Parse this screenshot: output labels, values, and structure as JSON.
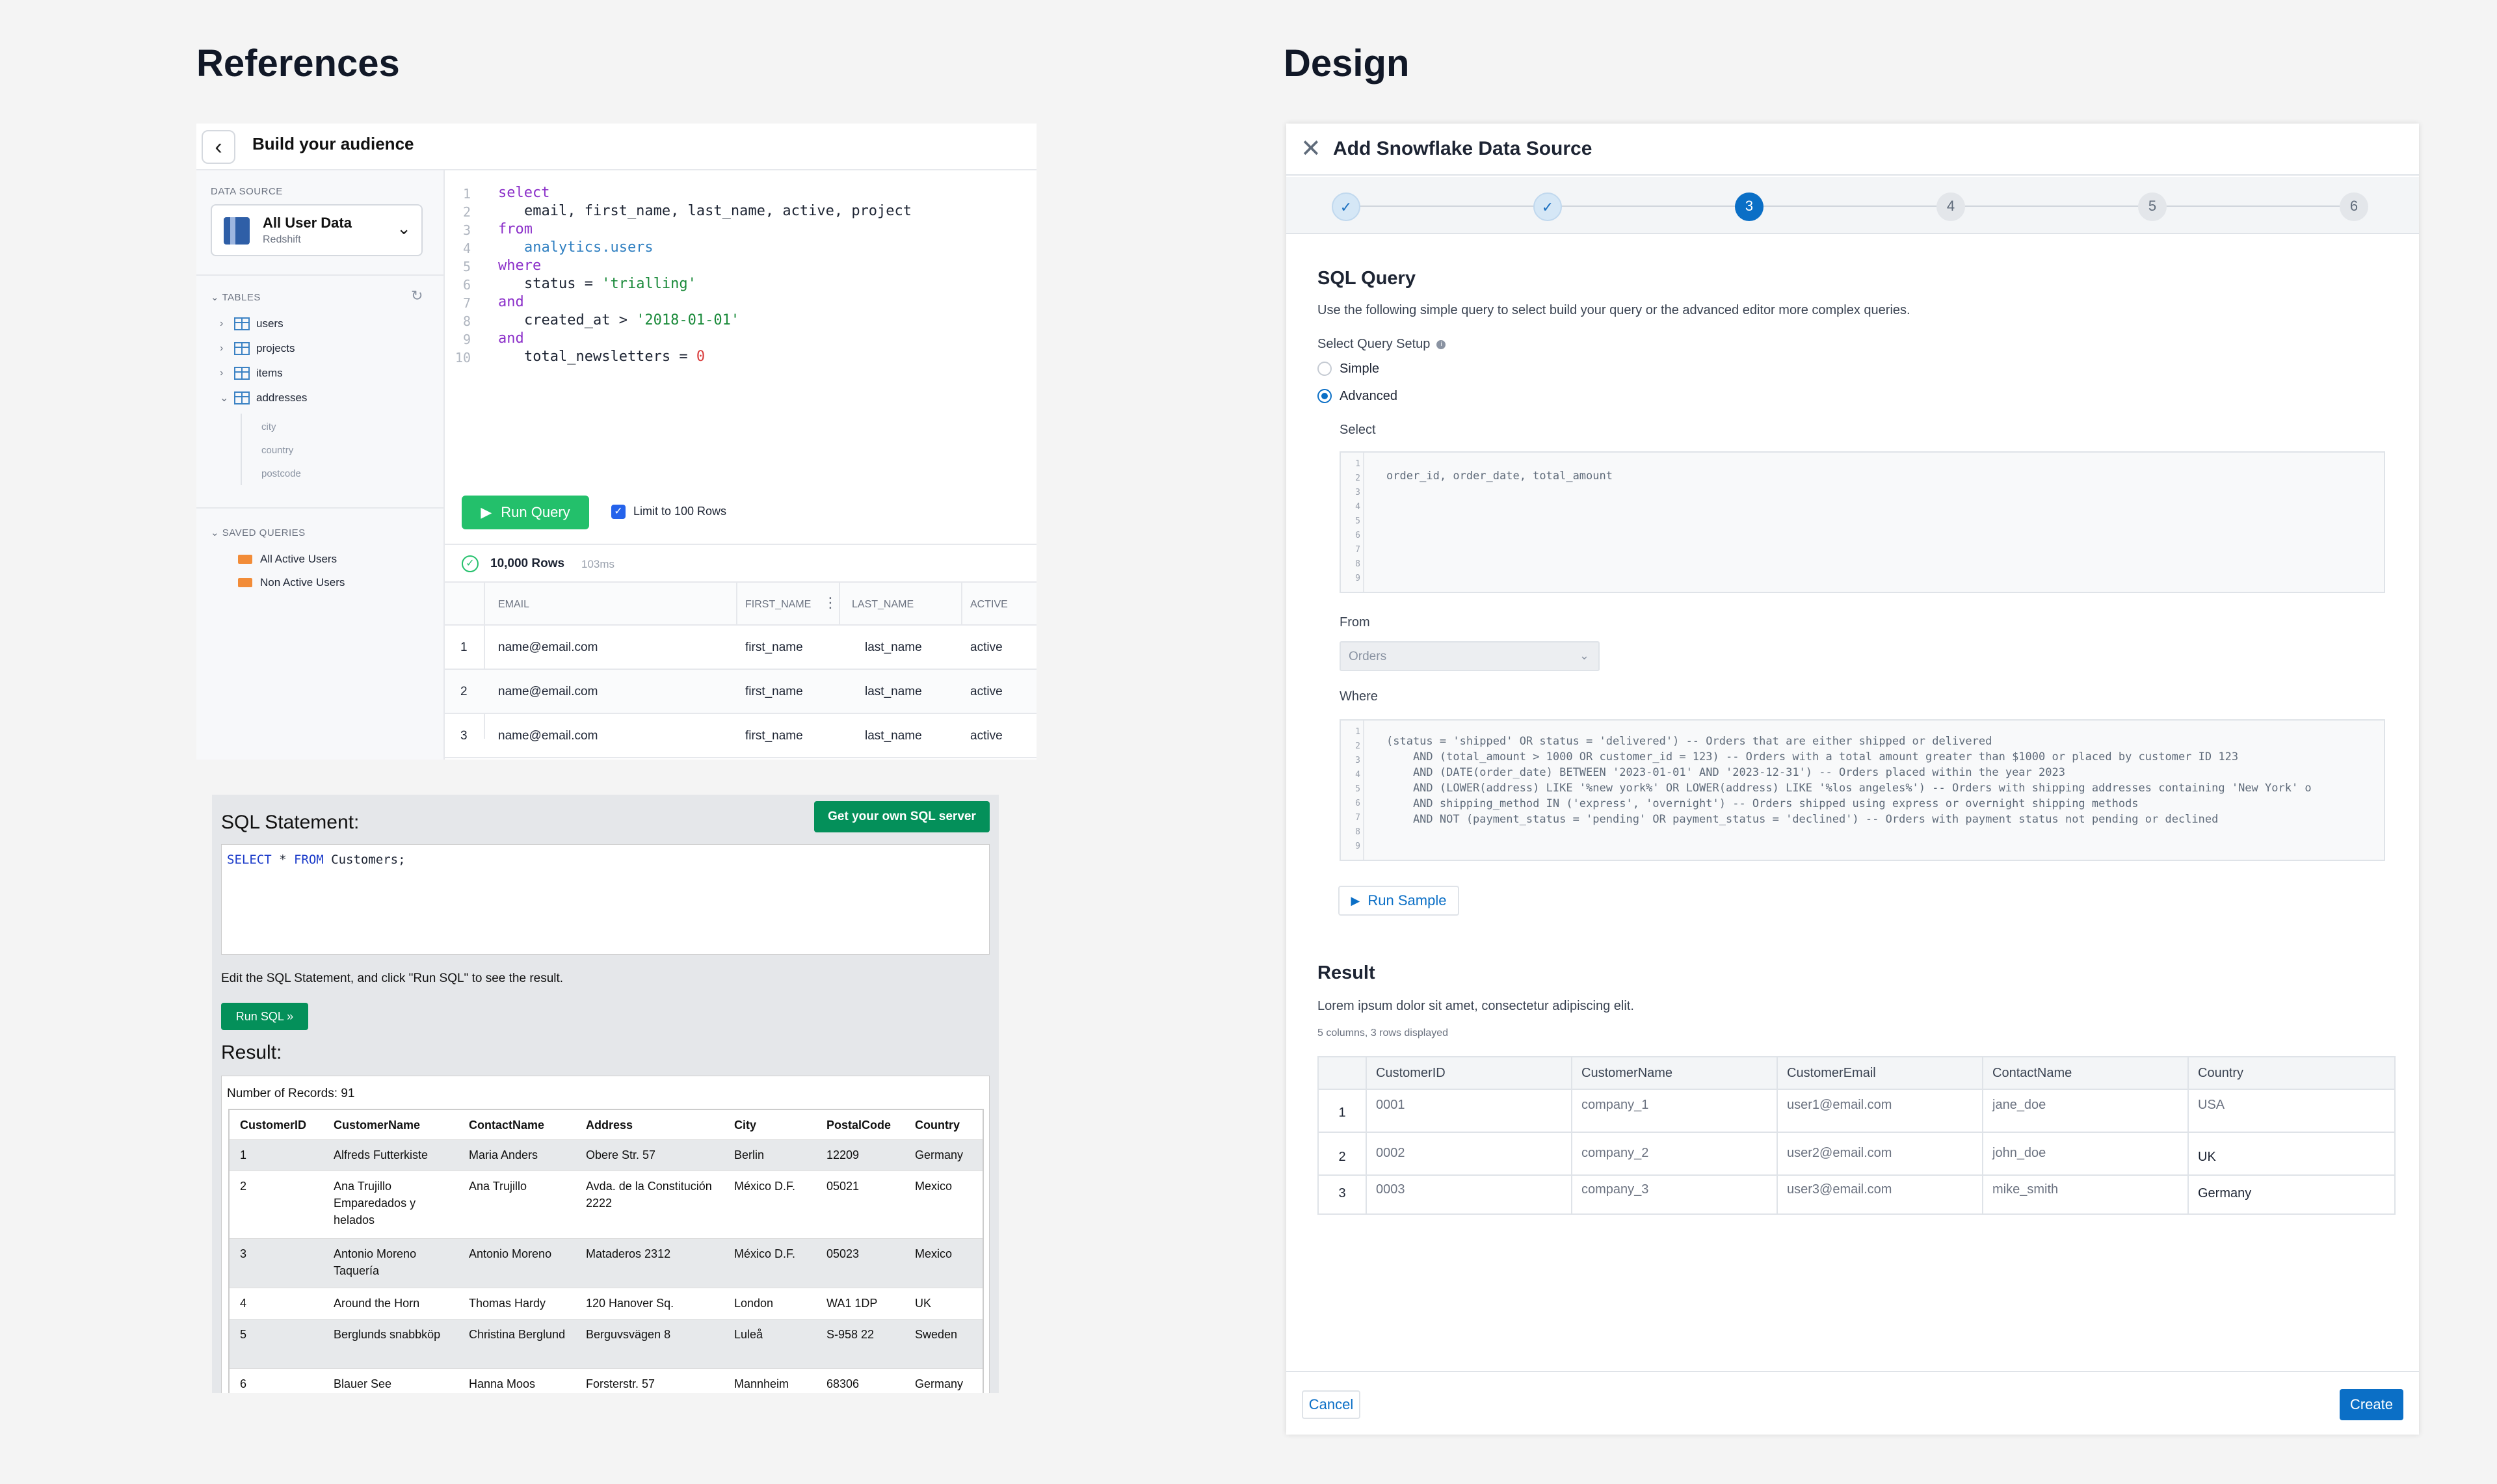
{
  "headings": {
    "references": "References",
    "design": "Design"
  },
  "ref1": {
    "title": "Build your audience",
    "data_source_label": "DATA SOURCE",
    "data_source_name": "All User Data",
    "data_source_sub": "Redshift",
    "tables_label": "TABLES",
    "tables": [
      "users",
      "projects",
      "items",
      "addresses"
    ],
    "columns": [
      "city",
      "country",
      "postcode"
    ],
    "saved_label": "SAVED QUERIES",
    "saved_queries": [
      "All Active Users",
      "Non Active Users"
    ],
    "code": {
      "l1": "select",
      "l2": "email, first_name, last_name, active, project",
      "l3": "from",
      "l4": "analytics.users",
      "l5": "where",
      "l6a": "status = ",
      "l6b": "'trialling'",
      "l7": "and",
      "l8a": "created_at > ",
      "l8b": "'2018-01-01'",
      "l9": "and",
      "l10a": "total_newsletters = ",
      "l10b": "0"
    },
    "run_label": "Run Query",
    "limit_label": "Limit to 100 Rows",
    "result_rows": "10,000 Rows",
    "result_ms": "103ms",
    "grid_headers": [
      "EMAIL",
      "FIRST_NAME",
      "LAST_NAME",
      "ACTIVE"
    ],
    "grid_rows": [
      {
        "n": "1",
        "email": "name@email.com",
        "first": "first_name",
        "last": "last_name",
        "active": "active"
      },
      {
        "n": "2",
        "email": "name@email.com",
        "first": "first_name",
        "last": "last_name",
        "active": "active"
      },
      {
        "n": "3",
        "email": "name@email.com",
        "first": "first_name",
        "last": "last_name",
        "active": "active"
      }
    ]
  },
  "ref2": {
    "title": "SQL Statement:",
    "own_btn": "Get your own SQL server",
    "code_k1": "SELECT",
    "code_mid": " * ",
    "code_k2": "FROM",
    "code_rest": " Customers;",
    "note": "Edit the SQL Statement, and click \"Run SQL\" to see the result.",
    "run_btn": "Run SQL »",
    "result": "Result:",
    "records": "Number of Records: 91",
    "headers": [
      "CustomerID",
      "CustomerName",
      "ContactName",
      "Address",
      "City",
      "PostalCode",
      "Country"
    ],
    "rows": [
      [
        "1",
        "Alfreds Futterkiste",
        "Maria Anders",
        "Obere Str. 57",
        "Berlin",
        "12209",
        "Germany"
      ],
      [
        "2",
        "Ana Trujillo Emparedados y helados",
        "Ana Trujillo",
        "Avda. de la Constitución 2222",
        "México D.F.",
        "05021",
        "Mexico"
      ],
      [
        "3",
        "Antonio Moreno Taquería",
        "Antonio Moreno",
        "Mataderos 2312",
        "México D.F.",
        "05023",
        "Mexico"
      ],
      [
        "4",
        "Around the Horn",
        "Thomas Hardy",
        "120 Hanover Sq.",
        "London",
        "WA1 1DP",
        "UK"
      ],
      [
        "5",
        "Berglunds snabbköp",
        "Christina Berglund",
        "Berguvsvägen 8",
        "Luleå",
        "S-958 22",
        "Sweden"
      ],
      [
        "6",
        "Blauer See",
        "Hanna Moos",
        "Forsterstr. 57",
        "Mannheim",
        "68306",
        "Germany"
      ]
    ]
  },
  "design": {
    "title": "Add Snowflake Data Source",
    "steps": [
      "✓",
      "✓",
      "3",
      "4",
      "5",
      "6"
    ],
    "sql_title": "SQL Query",
    "sql_desc": "Use the following simple query to select build your query or the advanced editor more complex queries.",
    "setup_label": "Select Query Setup",
    "opt_simple": "Simple",
    "opt_advanced": "Advanced",
    "select_label": "Select",
    "select_code": "order_id, order_date, total_amount",
    "from_label": "From",
    "from_value": "Orders",
    "where_label": "Where",
    "where_code": [
      "(status = 'shipped' OR status = 'delivered') -- Orders that are either shipped or delivered",
      "    AND (total_amount > 1000 OR customer_id = 123) -- Orders with a total amount greater than $1000 or placed by customer ID 123",
      "    AND (DATE(order_date) BETWEEN '2023-01-01' AND '2023-12-31') -- Orders placed within the year 2023",
      "    AND (LOWER(address) LIKE '%new york%' OR LOWER(address) LIKE '%los angeles%') -- Orders with shipping addresses containing 'New York' o",
      "    AND shipping_method IN ('express', 'overnight') -- Orders shipped using express or overnight shipping methods",
      "    AND NOT (payment_status = 'pending' OR payment_status = 'declined') -- Orders with payment status not pending or declined"
    ],
    "run_sample": "Run Sample",
    "result_title": "Result",
    "result_desc": "Lorem ipsum dolor sit amet, consectetur adipiscing elit.",
    "result_count": "5 columns, 3 rows displayed",
    "headers": [
      "CustomerID",
      "CustomerName",
      "CustomerEmail",
      "ContactName",
      "Country"
    ],
    "rows": [
      [
        "0001",
        "company_1",
        "user1@email.com",
        "jane_doe",
        "USA"
      ],
      [
        "0002",
        "company_2",
        "user2@email.com",
        "john_doe",
        "UK"
      ],
      [
        "0003",
        "company_3",
        "user3@email.com",
        "mike_smith",
        "Germany"
      ]
    ],
    "cancel": "Cancel",
    "create": "Create"
  }
}
